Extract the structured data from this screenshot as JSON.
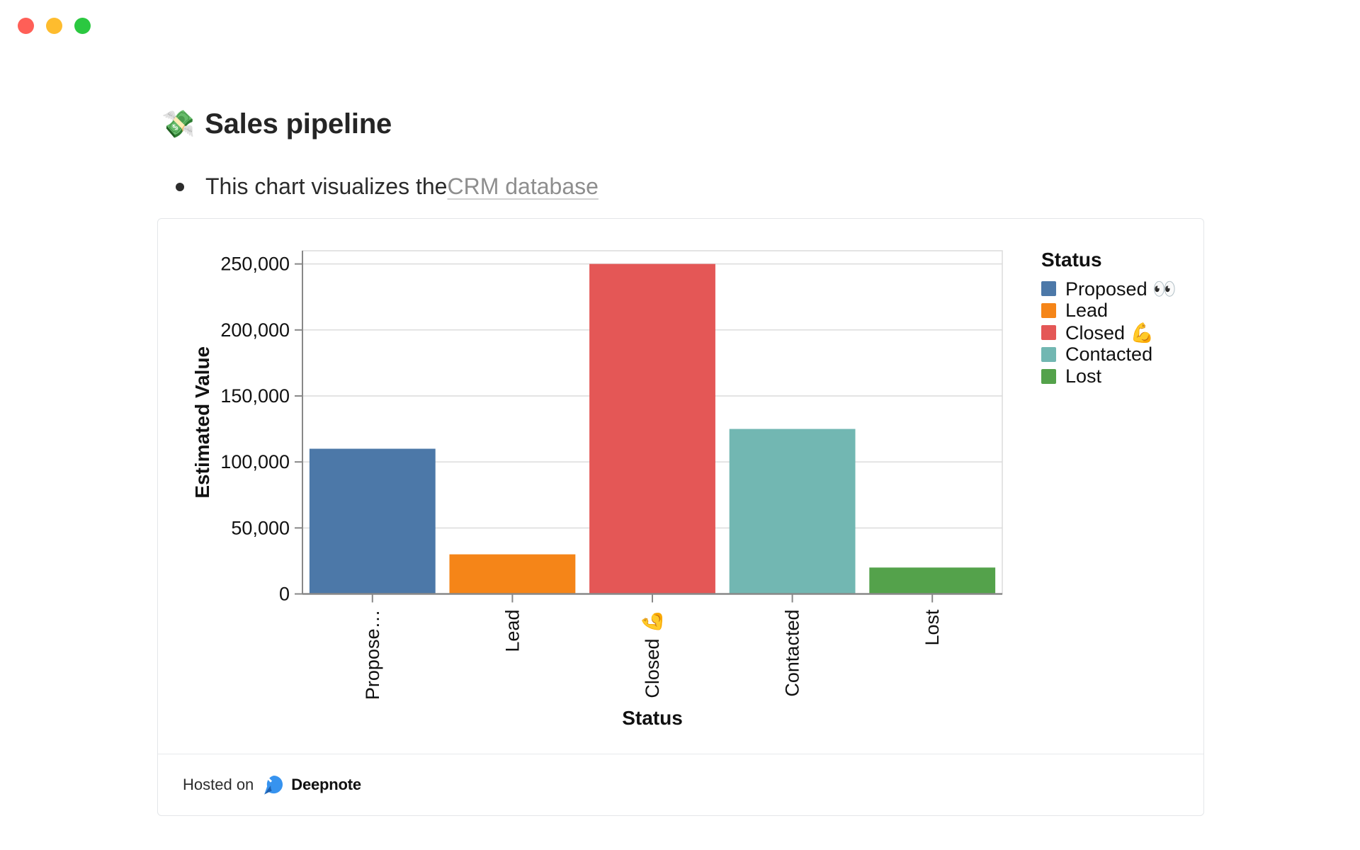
{
  "window": {
    "controls": [
      "close",
      "minimize",
      "zoom"
    ]
  },
  "page": {
    "title_emoji": "💸",
    "title": "Sales pipeline",
    "bullet_text": "This chart visualizes the ",
    "bullet_link": "CRM database"
  },
  "chart_data": {
    "type": "bar",
    "title": "",
    "xlabel": "Status",
    "ylabel": "Estimated Value",
    "categories": [
      "Proposed 👀",
      "Lead",
      "Closed 💪",
      "Contacted",
      "Lost"
    ],
    "x_tick_labels": [
      "Propose…",
      "Lead",
      "Closed 💪",
      "Contacted",
      "Lost"
    ],
    "values": [
      110000,
      30000,
      250000,
      125000,
      20000
    ],
    "colors": [
      "#4c78a8",
      "#f58518",
      "#e45756",
      "#72b7b2",
      "#54a24b"
    ],
    "ylim": [
      0,
      260000
    ],
    "ytick_values": [
      0,
      50000,
      100000,
      150000,
      200000,
      250000
    ],
    "ytick_labels": [
      "0",
      "50,000",
      "100,000",
      "150,000",
      "200,000",
      "250,000"
    ],
    "grid": "horizontal",
    "legend_title": "Status",
    "legend_position": "right"
  },
  "footer": {
    "hosted_on": "Hosted on",
    "brand": "Deepnote"
  },
  "colors": {
    "bar_blue": "#4c78a8",
    "bar_orange": "#f58518",
    "bar_red": "#e45756",
    "bar_teal": "#72b7b2",
    "bar_green": "#54a24b",
    "gridline": "#dcdcdc",
    "axis": "#888888",
    "link_gray": "#8e8e8e",
    "deepnote_blue": "#3793ef"
  }
}
